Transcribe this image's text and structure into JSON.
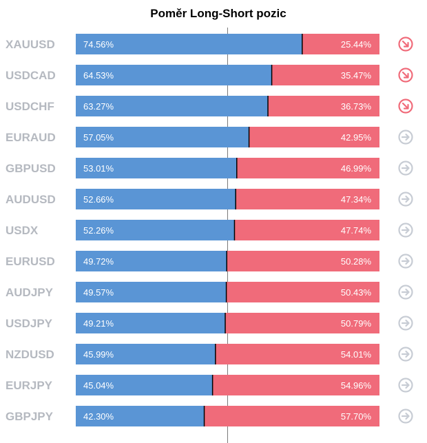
{
  "title": "Poměr Long-Short pozic",
  "colors": {
    "long": "#5a95d5",
    "short": "#f06b7a",
    "label": "#b5b9c0",
    "icon_down": "#f06b7a",
    "icon_neutral": "#c7ccd4",
    "center_line": "#7a7a7a",
    "divider": "#000000"
  },
  "chart_data": {
    "type": "bar",
    "orientation": "horizontal",
    "stacked": true,
    "title": "Poměr Long-Short pozic",
    "categories": [
      "XAUUSD",
      "USDCAD",
      "USDCHF",
      "EURAUD",
      "GBPUSD",
      "AUDUSD",
      "USDX",
      "EURUSD",
      "AUDJPY",
      "USDJPY",
      "NZDUSD",
      "EURJPY",
      "GBPJPY"
    ],
    "series": [
      {
        "values": [
          74.56,
          64.53,
          63.27,
          57.05,
          53.01,
          52.66,
          52.26,
          49.72,
          49.57,
          49.21,
          45.99,
          45.04,
          42.3
        ]
      },
      {
        "values": [
          25.44,
          35.47,
          36.73,
          42.95,
          46.99,
          47.34,
          47.74,
          50.28,
          50.43,
          50.79,
          54.01,
          54.96,
          57.7
        ]
      }
    ],
    "value_labels_long": [
      "74.56%",
      "64.53%",
      "63.27%",
      "57.05%",
      "53.01%",
      "52.66%",
      "52.26%",
      "49.72%",
      "49.57%",
      "49.21%",
      "45.99%",
      "45.04%",
      "42.30%"
    ],
    "value_labels_short": [
      "25.44%",
      "35.47%",
      "36.73%",
      "42.95%",
      "46.99%",
      "47.34%",
      "47.74%",
      "50.28%",
      "50.43%",
      "50.79%",
      "54.01%",
      "54.96%",
      "57.70%"
    ],
    "signals": [
      "down",
      "down",
      "down",
      "neutral",
      "neutral",
      "neutral",
      "neutral",
      "neutral",
      "neutral",
      "neutral",
      "neutral",
      "neutral",
      "neutral"
    ],
    "xlim": [
      0,
      100
    ],
    "center_line_value": 50,
    "grid": false,
    "legend": "none"
  }
}
